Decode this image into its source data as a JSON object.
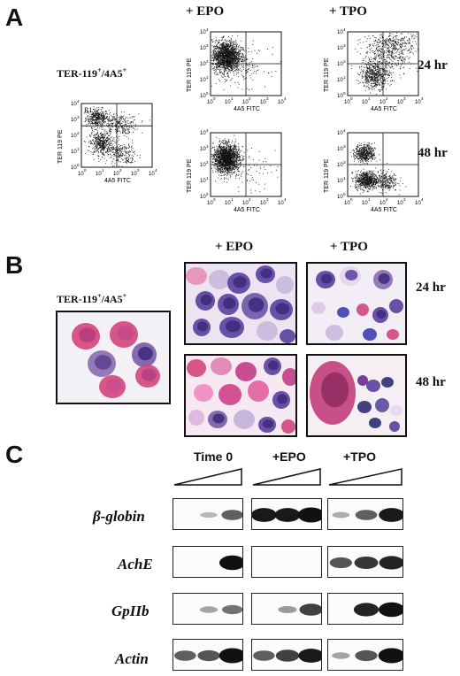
{
  "panels": {
    "A": {
      "letter": "A",
      "cell_label": {
        "main": "TER-119",
        "sup1": "+",
        "mid": "/4A5",
        "sup2": "+"
      },
      "conditions": [
        "+ EPO",
        "+ TPO"
      ],
      "times": [
        "24 hr",
        "48 hr"
      ],
      "axis": {
        "x_label": "4A5 FITC",
        "y_label": "TER 119 PE",
        "ticks": [
          "10",
          "10",
          "10",
          "10",
          "10"
        ],
        "exps": [
          "0",
          "1",
          "2",
          "3",
          "4"
        ]
      },
      "regions": [
        "R1",
        "R3",
        "R2"
      ]
    },
    "B": {
      "letter": "B",
      "cell_label": {
        "main": "TER-119",
        "sup1": "+",
        "mid": "/4A5",
        "sup2": "+"
      },
      "conditions": [
        "+ EPO",
        "+ TPO"
      ],
      "times": [
        "24 hr",
        "48 hr"
      ]
    },
    "C": {
      "letter": "C",
      "columns": [
        "Time 0",
        "+EPO",
        "+TPO"
      ],
      "genes": [
        "β-globin",
        "AchE",
        "GpIIb",
        "Actin"
      ],
      "bands": {
        "β-globin": [
          [
            0.0,
            0.1,
            0.55
          ],
          [
            0.9,
            0.9,
            1.0
          ],
          [
            0.15,
            0.55,
            0.9
          ]
        ],
        "AchE": [
          [
            0.0,
            0.0,
            0.95
          ],
          [
            0.0,
            0.0,
            0.0
          ],
          [
            0.6,
            0.75,
            0.85
          ]
        ],
        "GpIIb": [
          [
            0.0,
            0.2,
            0.45
          ],
          [
            0.0,
            0.25,
            0.7
          ],
          [
            0.0,
            0.85,
            0.95
          ]
        ],
        "Actin": [
          [
            0.55,
            0.6,
            1.0
          ],
          [
            0.55,
            0.7,
            0.9
          ],
          [
            0.2,
            0.6,
            1.0
          ]
        ]
      }
    }
  },
  "colors": {
    "ink": "#111111",
    "stain_pink": "#d94f8a",
    "stain_purple": "#6a4fa3",
    "blot_bg": "#fbfbfb"
  }
}
